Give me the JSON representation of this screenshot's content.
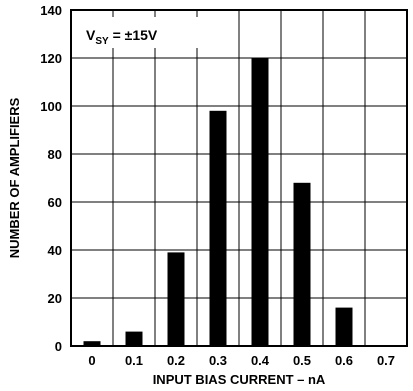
{
  "chart_data": {
    "type": "bar",
    "categories": [
      "0",
      "0.1",
      "0.2",
      "0.3",
      "0.4",
      "0.5",
      "0.6",
      "0.7"
    ],
    "values": [
      2,
      6,
      39,
      98,
      120,
      68,
      16,
      0
    ],
    "xlabel": "INPUT BIAS CURRENT – nA",
    "ylabel": "NUMBER OF AMPLIFIERS",
    "ylim": [
      0,
      140
    ],
    "yticks": [
      0,
      20,
      40,
      60,
      80,
      100,
      120,
      140
    ],
    "grid": true,
    "annotation": {
      "prefix": "V",
      "subscript": "SY",
      "suffix": " = ±15V"
    },
    "colors": {
      "bar": "#000000",
      "grid": "#000000",
      "background": "#ffffff"
    }
  }
}
